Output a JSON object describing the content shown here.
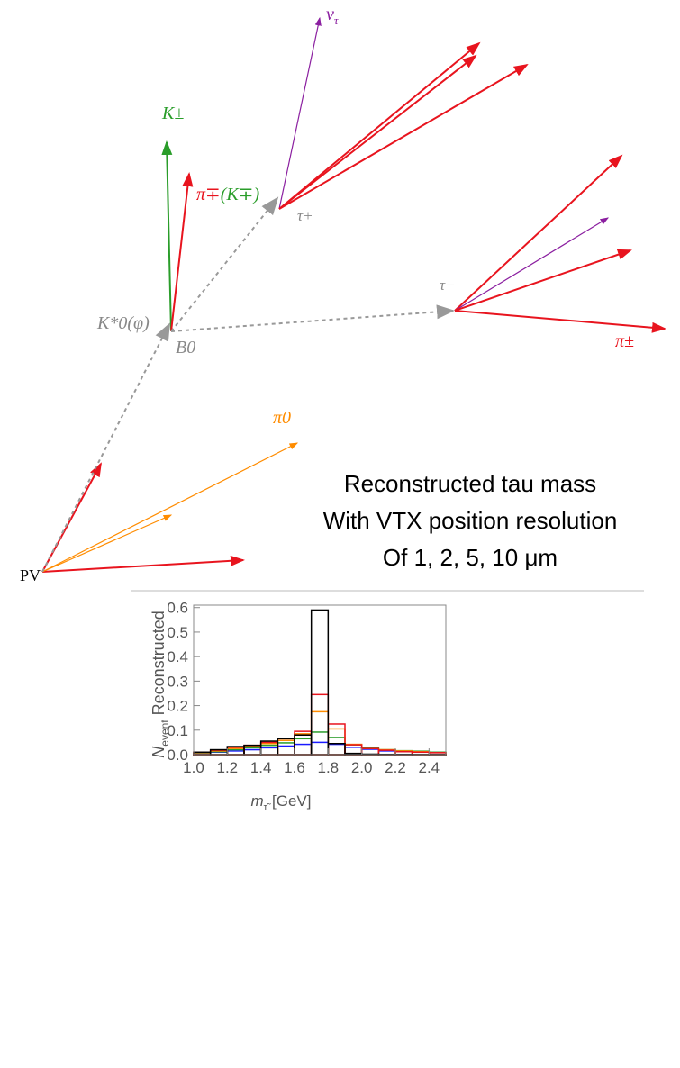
{
  "diagram": {
    "labels": {
      "nu_tau": {
        "symbol": "ν",
        "sub": "τ"
      },
      "k_pm": "K±",
      "pi_k": {
        "pi": "π∓",
        "k": "(K∓)"
      },
      "tau_plus": "τ+",
      "tau_minus": "τ−",
      "kstar": "K*0(φ)",
      "b0": "B0",
      "pi_pm": "π±",
      "pi0": "π0",
      "pv": "PV"
    },
    "annotation": [
      "Reconstructed tau mass",
      "With VTX position resolution",
      "Of 1, 2, 5, 10 μm"
    ]
  },
  "chart_data": {
    "type": "histogram",
    "x_label": {
      "symbol": "m",
      "sub": "τ̃",
      "unit": "[GeV]"
    },
    "y_label": {
      "symbol": "N",
      "sub": "event",
      "text": "Reconstructed"
    },
    "bins": [
      1.0,
      1.1,
      1.2,
      1.3,
      1.4,
      1.5,
      1.6,
      1.7,
      1.8,
      1.9,
      2.0,
      2.1,
      2.2,
      2.3,
      2.4,
      2.5
    ],
    "series": [
      {
        "color": "#1a1aff",
        "values": [
          0.005,
          0.01,
          0.015,
          0.02,
          0.028,
          0.035,
          0.042,
          0.05,
          0.042,
          0.03,
          0.022,
          0.015,
          0.012,
          0.01,
          0.008
        ]
      },
      {
        "color": "#2a9d2a",
        "values": [
          0.007,
          0.012,
          0.02,
          0.028,
          0.038,
          0.048,
          0.065,
          0.092,
          0.07,
          0.04,
          0.028,
          0.02,
          0.016,
          0.014,
          0.01
        ]
      },
      {
        "color": "#ff8c00",
        "values": [
          0.008,
          0.015,
          0.025,
          0.033,
          0.045,
          0.058,
          0.085,
          0.175,
          0.105,
          0.042,
          0.025,
          0.02,
          0.015,
          0.012,
          0.008
        ]
      },
      {
        "color": "#e8141e",
        "values": [
          0.01,
          0.018,
          0.03,
          0.038,
          0.05,
          0.065,
          0.095,
          0.245,
          0.125,
          0.04,
          0.025,
          0.018,
          0.012,
          0.01,
          0.008
        ]
      },
      {
        "color": "#000000",
        "values": [
          0.01,
          0.02,
          0.033,
          0.038,
          0.055,
          0.065,
          0.08,
          0.59,
          0.045,
          0.005,
          0.002,
          0.001,
          0.001,
          0.0005,
          0.0005
        ]
      }
    ],
    "xlim": [
      1.0,
      2.5
    ],
    "ylim": [
      0,
      0.61
    ],
    "xticks": [
      {
        "value": 1,
        "label": "1.0"
      },
      1.2,
      1.4,
      1.6,
      1.8,
      {
        "value": 2,
        "label": "2.0"
      },
      2.2,
      2.4
    ],
    "yticks": [
      {
        "value": 0,
        "label": "0.0"
      },
      0.1,
      0.2,
      0.3,
      0.4,
      0.5,
      0.6
    ]
  }
}
